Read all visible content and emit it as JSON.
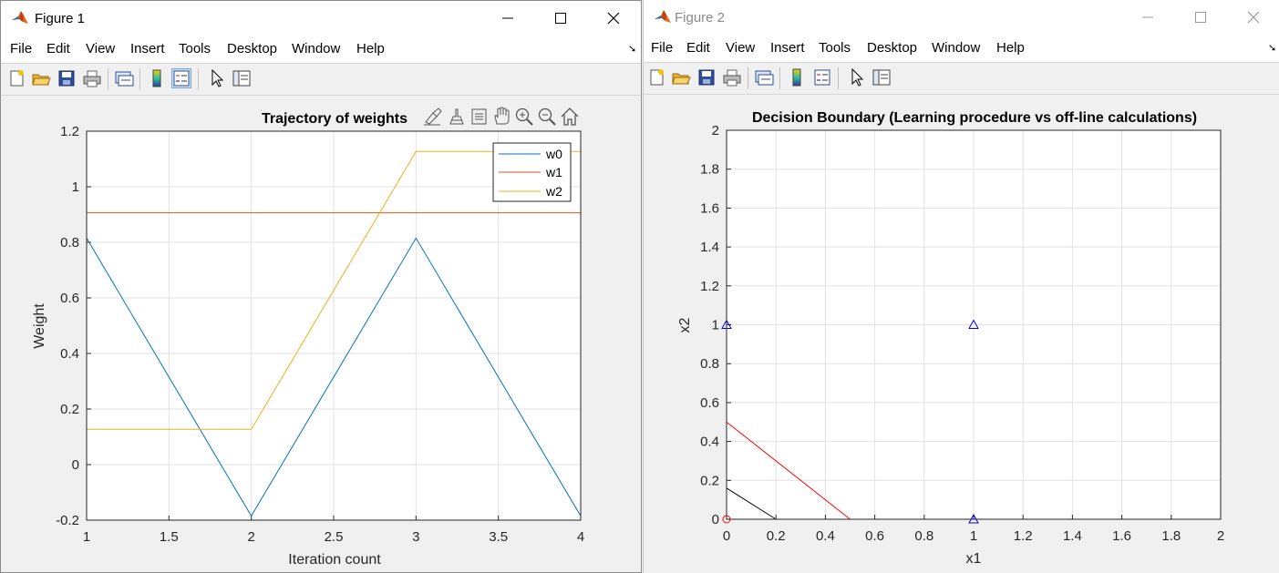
{
  "menu": [
    "File",
    "Edit",
    "View",
    "Insert",
    "Tools",
    "Desktop",
    "Window",
    "Help"
  ],
  "window_controls": [
    "minimize-icon",
    "maximize-icon",
    "close-icon"
  ],
  "toolbar_icons": [
    "new-figure-icon",
    "open-file-icon",
    "save-icon",
    "print-icon",
    "link-plot-icon",
    "insert-colorbar-icon",
    "insert-legend-icon",
    "edit-plot-arrow-icon",
    "property-inspector-icon"
  ],
  "axes_toolbar_icons": [
    "brush-icon",
    "data-tips-icon",
    "rotate-icon",
    "pan-icon",
    "zoom-in-icon",
    "zoom-out-icon",
    "home-icon"
  ],
  "colors": {
    "blue": "#0072BD",
    "orange": "#D95319",
    "yellow": "#EDB120",
    "red": "#FF0000",
    "black": "#000000",
    "marker_blue": "#0000FF",
    "grid": "#e1e1e1",
    "title_active": "#000000",
    "title_inactive": "#8a8a8a"
  },
  "figure1": {
    "title": "Figure 1",
    "chart_data": {
      "type": "line",
      "title": "Trajectory of weights",
      "xlabel": "Iteration count",
      "ylabel": "Weight",
      "xlim": [
        1,
        4
      ],
      "ylim": [
        -0.2,
        1.2
      ],
      "xticks": [
        "1",
        "1.5",
        "2",
        "2.5",
        "3",
        "3.5",
        "4"
      ],
      "yticks": [
        "-0.2",
        "0",
        "0.2",
        "0.4",
        "0.6",
        "0.8",
        "1",
        "1.2"
      ],
      "grid": true,
      "legend_position": "top-right",
      "x": [
        1,
        2,
        3,
        4
      ],
      "series": [
        {
          "name": "w0",
          "values": [
            0.815,
            -0.185,
            0.815,
            -0.185
          ]
        },
        {
          "name": "w1",
          "values": [
            0.906,
            0.906,
            0.906,
            0.906
          ]
        },
        {
          "name": "w2",
          "values": [
            0.127,
            0.127,
            1.127,
            1.127
          ]
        }
      ]
    }
  },
  "figure2": {
    "title": "Figure 2",
    "chart_data": {
      "type": "scatter",
      "title": "Decision Boundary (Learning procedure vs off-line calculations)",
      "xlabel": "x1",
      "ylabel": "x2",
      "xlim": [
        0,
        2
      ],
      "ylim": [
        0,
        2
      ],
      "xticks": [
        "0",
        "0.2",
        "0.4",
        "0.6",
        "0.8",
        "1",
        "1.2",
        "1.4",
        "1.6",
        "1.8",
        "2"
      ],
      "yticks": [
        "0",
        "0.2",
        "0.4",
        "0.6",
        "0.8",
        "1",
        "1.2",
        "1.4",
        "1.6",
        "1.8",
        "2"
      ],
      "grid": true,
      "points": [
        {
          "x": 0,
          "y": 0,
          "marker": "circle",
          "color": "#FF0000"
        },
        {
          "x": 0,
          "y": 1,
          "marker": "triangle",
          "color": "#0000FF"
        },
        {
          "x": 1,
          "y": 1,
          "marker": "triangle",
          "color": "#0000FF"
        },
        {
          "x": 1,
          "y": 0,
          "marker": "triangle",
          "color": "#0000FF"
        }
      ],
      "lines": [
        {
          "x": [
            0,
            0.5
          ],
          "y": [
            0.5,
            0
          ],
          "color": "#FF0000"
        },
        {
          "x": [
            0,
            0.2
          ],
          "y": [
            0.16,
            0
          ],
          "color": "#000000"
        }
      ]
    }
  }
}
